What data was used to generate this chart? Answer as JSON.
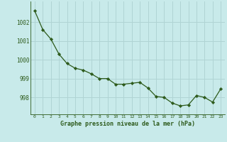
{
  "x": [
    0,
    1,
    2,
    3,
    4,
    5,
    6,
    7,
    8,
    9,
    10,
    11,
    12,
    13,
    14,
    15,
    16,
    17,
    18,
    19,
    20,
    21,
    22,
    23
  ],
  "y": [
    1002.6,
    1001.6,
    1001.1,
    1000.3,
    999.8,
    999.55,
    999.45,
    999.25,
    999.0,
    999.0,
    998.7,
    998.7,
    998.75,
    998.8,
    998.5,
    998.05,
    998.0,
    997.7,
    997.55,
    997.6,
    998.1,
    998.0,
    997.75,
    998.45
  ],
  "line_color": "#2d5a1b",
  "marker_color": "#2d5a1b",
  "bg_color": "#c8eaea",
  "grid_color": "#b0d4d4",
  "xlabel": "Graphe pression niveau de la mer (hPa)",
  "xlabel_color": "#2d5a1b",
  "tick_color": "#2d5a1b",
  "ylim": [
    997.1,
    1003.1
  ],
  "yticks": [
    998,
    999,
    1000,
    1001,
    1002
  ],
  "xlim": [
    -0.5,
    23.5
  ],
  "xticks": [
    0,
    1,
    2,
    3,
    4,
    5,
    6,
    7,
    8,
    9,
    10,
    11,
    12,
    13,
    14,
    15,
    16,
    17,
    18,
    19,
    20,
    21,
    22,
    23
  ]
}
